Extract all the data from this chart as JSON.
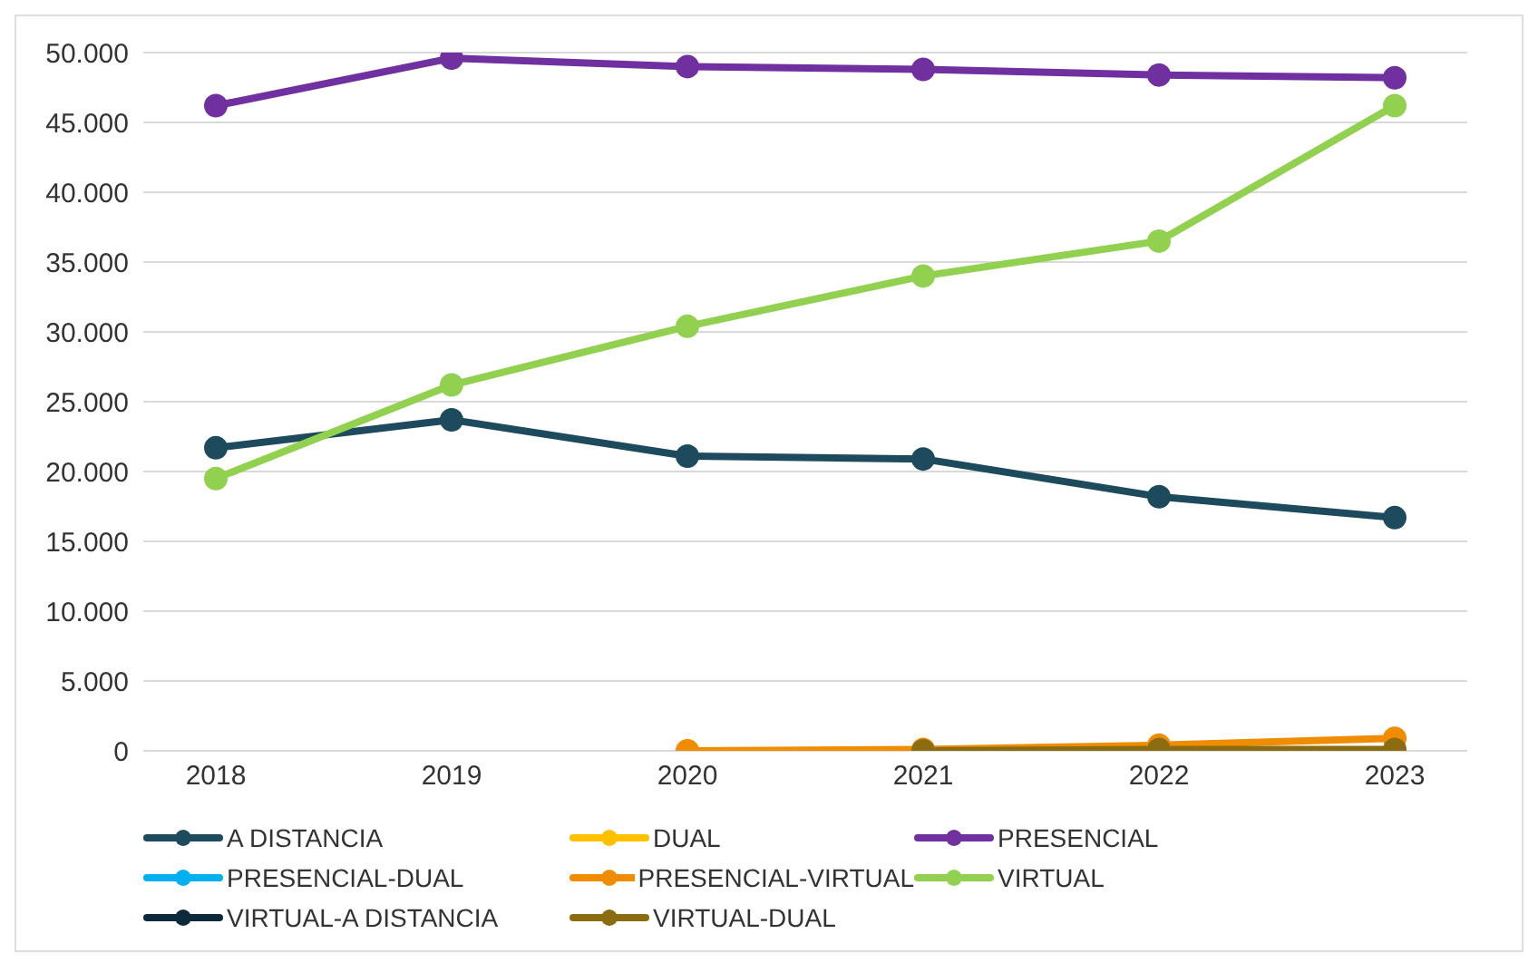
{
  "chart_data": {
    "type": "line",
    "categories": [
      "2018",
      "2019",
      "2020",
      "2021",
      "2022",
      "2023"
    ],
    "series": [
      {
        "name": "A DISTANCIA",
        "color": "#1d4a5c",
        "values": [
          21700,
          23700,
          21100,
          20900,
          18200,
          16700
        ]
      },
      {
        "name": "DUAL",
        "color": "#ffc000",
        "values": [
          null,
          null,
          null,
          null,
          null,
          null
        ]
      },
      {
        "name": "PRESENCIAL",
        "color": "#7030a0",
        "values": [
          46200,
          49600,
          49000,
          48800,
          48400,
          48200
        ]
      },
      {
        "name": "PRESENCIAL-DUAL",
        "color": "#00b0f0",
        "values": [
          null,
          null,
          null,
          null,
          null,
          null
        ]
      },
      {
        "name": "PRESENCIAL-VIRTUAL",
        "color": "#f08c00",
        "values": [
          null,
          null,
          0,
          100,
          400,
          900
        ]
      },
      {
        "name": "VIRTUAL",
        "color": "#92d050",
        "values": [
          19500,
          26200,
          30400,
          34000,
          36500,
          46200
        ]
      },
      {
        "name": "VIRTUAL-A DISTANCIA",
        "color": "#0d2a3a",
        "values": [
          null,
          null,
          null,
          null,
          null,
          null
        ]
      },
      {
        "name": "VIRTUAL-DUAL",
        "color": "#8b6c10",
        "values": [
          null,
          null,
          null,
          0,
          100,
          100
        ]
      }
    ],
    "ylim": [
      0,
      50000
    ],
    "yticks": [
      {
        "value": 0,
        "label": "0"
      },
      {
        "value": 5000,
        "label": "5.000"
      },
      {
        "value": 10000,
        "label": "10.000"
      },
      {
        "value": 15000,
        "label": "15.000"
      },
      {
        "value": 20000,
        "label": "20.000"
      },
      {
        "value": 25000,
        "label": "25.000"
      },
      {
        "value": 30000,
        "label": "30.000"
      },
      {
        "value": 35000,
        "label": "35.000"
      },
      {
        "value": 40000,
        "label": "40.000"
      },
      {
        "value": 45000,
        "label": "45.000"
      },
      {
        "value": 50000,
        "label": "50.000"
      }
    ],
    "grid": "y",
    "legend": "bottom",
    "marker": "circle",
    "line_style": "solid"
  }
}
